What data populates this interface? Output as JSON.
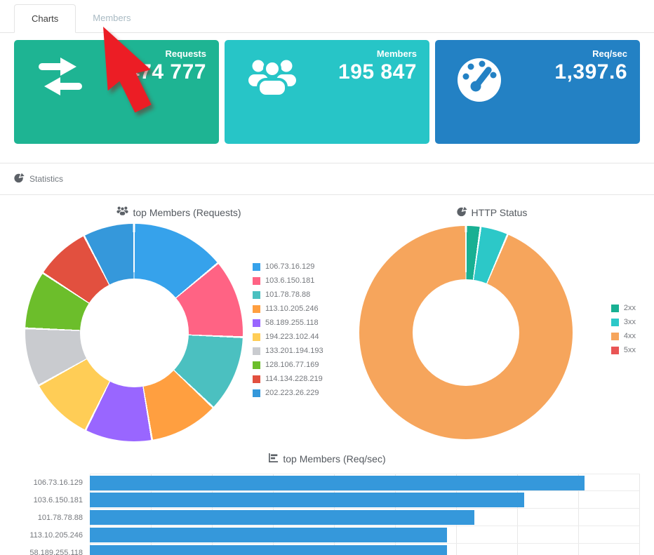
{
  "tabs": {
    "active": "Charts",
    "items": [
      {
        "label": "Charts"
      },
      {
        "label": "Members"
      }
    ]
  },
  "cards": [
    {
      "label": "Requests",
      "value": "474 777",
      "color": "#1eb493",
      "icon": "exchange-icon"
    },
    {
      "label": "Members",
      "value": "195 847",
      "color": "#27c5c7",
      "icon": "users-icon"
    },
    {
      "label": "Req/sec",
      "value": "1,397.6",
      "color": "#2381c4",
      "icon": "tachometer-icon"
    }
  ],
  "section_header": {
    "title": "Statistics",
    "icon": "pie-chart-icon"
  },
  "chart_data": [
    {
      "type": "pie",
      "donut": true,
      "title": "top Members (Requests)",
      "title_icon": "users-icon",
      "legend_position": "right",
      "labels": [
        "106.73.16.129",
        "103.6.150.181",
        "101.78.78.88",
        "113.10.205.246",
        "58.189.255.118",
        "194.223.102.44",
        "133.201.194.193",
        "128.106.77.169",
        "114.134.228.219",
        "202.223.26.229"
      ],
      "values": [
        14.0,
        11.7,
        11.4,
        10.3,
        10.0,
        9.6,
        8.7,
        8.6,
        8.2,
        7.6
      ],
      "units": "percent-estimated",
      "colors": [
        "#36a2eb",
        "#ff6384",
        "#4bc0c0",
        "#ff9f40",
        "#9966ff",
        "#ffcd56",
        "#c9cbcf",
        "#6cbe2b",
        "#e2503f",
        "#3598db"
      ]
    },
    {
      "type": "pie",
      "donut": true,
      "title": "HTTP Status",
      "title_icon": "pie-chart-icon",
      "legend_position": "right",
      "labels": [
        "2xx",
        "3xx",
        "4xx",
        "5xx"
      ],
      "values": [
        2.2,
        4.2,
        93.6,
        0
      ],
      "units": "percent-estimated",
      "colors": [
        "#18b093",
        "#2cc8c8",
        "#f6a55c",
        "#e95555"
      ]
    },
    {
      "type": "bar",
      "orientation": "horizontal",
      "title": "top Members (Req/sec)",
      "title_icon": "bar-chart-icon",
      "categories": [
        "106.73.16.129",
        "103.6.150.181",
        "101.78.78.88",
        "113.10.205.246",
        "58.189.255.118"
      ],
      "values": [
        90,
        79,
        70,
        65,
        65
      ],
      "xlim": [
        0,
        100
      ],
      "grid": true,
      "bar_color": "#3598db"
    }
  ],
  "cursor": {
    "shape": "red-arrow-pointer",
    "color": "#ec1d25",
    "points_at": "Members tab"
  }
}
